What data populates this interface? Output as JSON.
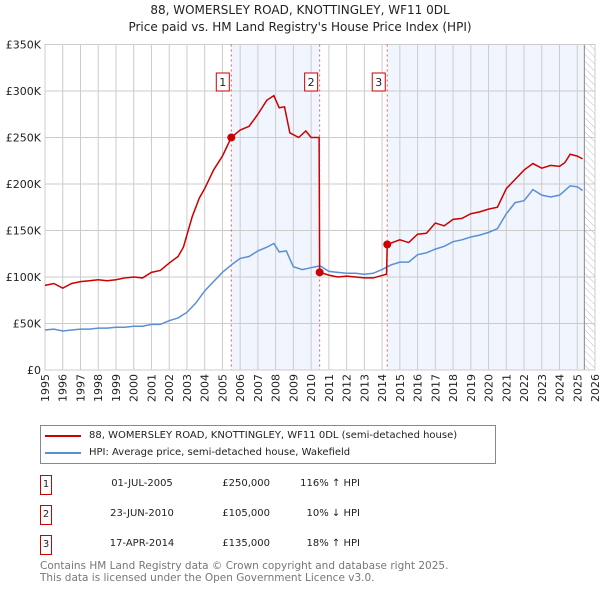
{
  "chart_data": {
    "type": "line",
    "title": "88, WOMERSLEY ROAD, KNOTTINGLEY, WF11 0DL",
    "subtitle": "Price paid vs. HM Land Registry's House Price Index (HPI)",
    "xlim": [
      1995,
      2026
    ],
    "ylim": [
      0,
      350000
    ],
    "x_ticks": [
      "1995",
      "1996",
      "1997",
      "1998",
      "1999",
      "2000",
      "2001",
      "2002",
      "2003",
      "2004",
      "2005",
      "2006",
      "2007",
      "2008",
      "2009",
      "2010",
      "2011",
      "2012",
      "2013",
      "2014",
      "2015",
      "2016",
      "2017",
      "2018",
      "2019",
      "2020",
      "2021",
      "2022",
      "2023",
      "2024",
      "2025",
      "2026"
    ],
    "y_ticks": [
      {
        "v": 0,
        "label": "£0"
      },
      {
        "v": 50000,
        "label": "£50K"
      },
      {
        "v": 100000,
        "label": "£100K"
      },
      {
        "v": 150000,
        "label": "£150K"
      },
      {
        "v": 200000,
        "label": "£200K"
      },
      {
        "v": 250000,
        "label": "£250K"
      },
      {
        "v": 300000,
        "label": "£300K"
      },
      {
        "v": 350000,
        "label": "£350K"
      }
    ],
    "grid": true,
    "series": [
      {
        "name": "88, WOMERSLEY ROAD, KNOTTINGLEY, WF11 0DL (semi-detached house)",
        "color": "#cc0000",
        "x": [
          1995,
          1995.5,
          1996,
          1996.5,
          1997,
          1997.5,
          1998,
          1998.5,
          1999,
          1999.5,
          2000,
          2000.5,
          2001,
          2001.5,
          2002,
          2002.5,
          2002.8,
          2003.3,
          2003.7,
          2004,
          2004.5,
          2005,
          2005.5,
          2006,
          2006.5,
          2007,
          2007.5,
          2007.9,
          2008.2,
          2008.5,
          2008.8,
          2009.3,
          2009.7,
          2010,
          2010.45,
          2010.48,
          2011,
          2011.5,
          2012,
          2012.5,
          2013,
          2013.5,
          2014.25,
          2014.29,
          2015,
          2015.5,
          2016,
          2016.5,
          2017,
          2017.5,
          2018,
          2018.5,
          2019,
          2019.5,
          2020,
          2020.5,
          2021,
          2021.5,
          2022,
          2022.5,
          2023,
          2023.5,
          2024,
          2024.3,
          2024.6,
          2025,
          2025.3
        ],
        "y": [
          91000,
          93000,
          88000,
          93000,
          95000,
          96000,
          97000,
          96000,
          97000,
          99000,
          100000,
          99000,
          105000,
          107000,
          115000,
          122000,
          132000,
          165000,
          185000,
          195000,
          215000,
          230000,
          250000,
          258000,
          262000,
          275000,
          290000,
          295000,
          282000,
          283000,
          255000,
          250000,
          257000,
          250000,
          250000,
          105000,
          102000,
          100000,
          101000,
          100000,
          99000,
          99000,
          103000,
          135000,
          140000,
          137000,
          146000,
          147000,
          158000,
          155000,
          162000,
          163000,
          168000,
          170000,
          173000,
          175000,
          195000,
          205000,
          215000,
          222000,
          217000,
          220000,
          219000,
          223000,
          232000,
          230000,
          227000
        ]
      },
      {
        "name": "HPI: Average price, semi-detached house, Wakefield",
        "color": "#5b8fd4",
        "x": [
          1995,
          1995.5,
          1996,
          1996.5,
          1997,
          1997.5,
          1998,
          1998.5,
          1999,
          1999.5,
          2000,
          2000.5,
          2001,
          2001.5,
          2002,
          2002.5,
          2003,
          2003.5,
          2004,
          2004.5,
          2005,
          2005.5,
          2006,
          2006.5,
          2007,
          2007.5,
          2007.9,
          2008.2,
          2008.6,
          2009,
          2009.5,
          2010,
          2010.5,
          2011,
          2011.5,
          2012,
          2012.5,
          2013,
          2013.5,
          2014,
          2014.5,
          2015,
          2015.5,
          2016,
          2016.5,
          2017,
          2017.5,
          2018,
          2018.5,
          2019,
          2019.5,
          2020,
          2020.5,
          2021,
          2021.5,
          2022,
          2022.5,
          2023,
          2023.5,
          2024,
          2024.3,
          2024.6,
          2025,
          2025.3
        ],
        "y": [
          43000,
          44000,
          42000,
          43000,
          44000,
          44000,
          45000,
          45000,
          46000,
          46000,
          47000,
          47000,
          49000,
          49000,
          53000,
          56000,
          62000,
          72000,
          85000,
          95000,
          105000,
          113000,
          120000,
          122000,
          128000,
          132000,
          136000,
          127000,
          128000,
          111000,
          108000,
          110000,
          112000,
          106000,
          105000,
          104000,
          104000,
          103000,
          104000,
          108000,
          113000,
          116000,
          116000,
          124000,
          126000,
          130000,
          133000,
          138000,
          140000,
          143000,
          145000,
          148000,
          152000,
          168000,
          180000,
          182000,
          194000,
          188000,
          186000,
          188000,
          193000,
          198000,
          197000,
          193000
        ]
      }
    ],
    "sales": [
      {
        "label": "1",
        "x": 2005.5,
        "y": 250000
      },
      {
        "label": "2",
        "x": 2010.48,
        "y": 105000
      },
      {
        "label": "3",
        "x": 2014.29,
        "y": 135000
      }
    ],
    "shaded_ranges": [
      [
        2005.5,
        2010.48
      ],
      [
        2014.29,
        2025.4
      ]
    ],
    "hatched_from": 2025.4
  },
  "legend": {
    "items": [
      {
        "label": "88, WOMERSLEY ROAD, KNOTTINGLEY, WF11 0DL (semi-detached house)",
        "color": "#cc0000"
      },
      {
        "label": "HPI: Average price, semi-detached house, Wakefield",
        "color": "#5b8fd4"
      }
    ]
  },
  "transactions": [
    {
      "num": "1",
      "date": "01-JUL-2005",
      "price": "£250,000",
      "hpi": "116% ↑ HPI"
    },
    {
      "num": "2",
      "date": "23-JUN-2010",
      "price": "£105,000",
      "hpi": "10% ↓ HPI"
    },
    {
      "num": "3",
      "date": "17-APR-2014",
      "price": "£135,000",
      "hpi": "18% ↑ HPI"
    }
  ],
  "footer": {
    "line1": "Contains HM Land Registry data © Crown copyright and database right 2025.",
    "line2": "This data is licensed under the Open Government Licence v3.0."
  }
}
